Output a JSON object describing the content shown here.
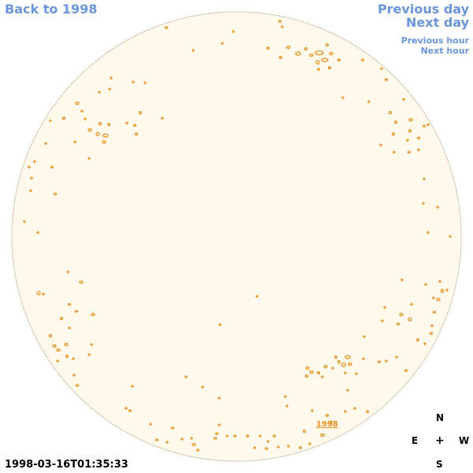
{
  "nav": {
    "back": "Back to 1998",
    "previous_day": "Previous day",
    "next_day": "Next day",
    "previous_hour": "Previous hour",
    "next_hour": "Next hour"
  },
  "compass": {
    "north": "N",
    "east": "E",
    "center": "+",
    "west": "W",
    "south": "S"
  },
  "timestamp": "1998-03-16T01:35:33",
  "year_label": "1998",
  "colors": {
    "disk_fill": "#fffaeb",
    "disk_edge": "#d2c8b4",
    "feature": "#e8901a",
    "link": "#6a96dc"
  }
}
